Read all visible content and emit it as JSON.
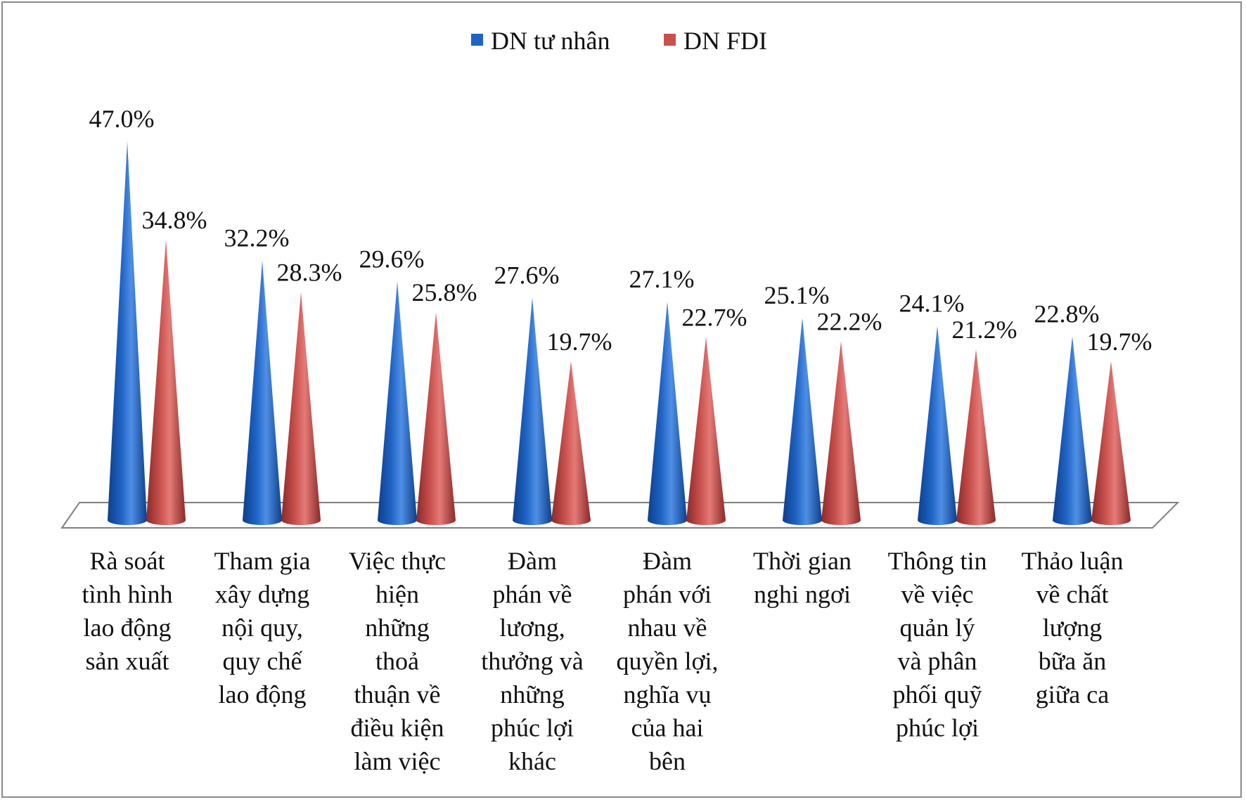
{
  "chart_data": {
    "type": "bar",
    "bar_shape": "cone-3d",
    "categories": [
      [
        "Rà soát",
        "tình hình",
        "lao động",
        "sản xuất"
      ],
      [
        "Tham gia",
        "xây dựng",
        "nội quy,",
        "quy chế",
        "lao động"
      ],
      [
        "Việc thực",
        "hiện",
        "những",
        "thoả",
        "thuận về",
        "điều kiện",
        "làm việc"
      ],
      [
        "Đàm",
        "phán về",
        "lương,",
        "thưởng và",
        "những",
        "phúc lợi",
        "khác"
      ],
      [
        "Đàm",
        "phán với",
        "nhau về",
        "quyền lợi,",
        "nghĩa vụ",
        "của hai",
        "bên"
      ],
      [
        "Thời gian",
        "nghi ngơi"
      ],
      [
        "Thông tin",
        "về việc",
        "quản lý",
        "và phân",
        "phối quỹ",
        "phúc lợi"
      ],
      [
        "Thảo luận",
        "về chất",
        "lượng",
        "bữa ăn",
        "giữa ca"
      ]
    ],
    "series": [
      {
        "name": "DN tư nhân",
        "color": "#1f63c4",
        "values": [
          47.0,
          32.2,
          29.6,
          27.6,
          27.1,
          25.1,
          24.1,
          22.8
        ],
        "labels": [
          "47.0%",
          "32.2%",
          "29.6%",
          "27.6%",
          "27.1%",
          "25.1%",
          "24.1%",
          "22.8%"
        ]
      },
      {
        "name": "DN FDI",
        "color": "#c8504d",
        "values": [
          34.8,
          28.3,
          25.8,
          19.7,
          22.7,
          22.2,
          21.2,
          19.7
        ],
        "labels": [
          "34.8%",
          "28.3%",
          "25.8%",
          "19.7%",
          "22.7%",
          "22.2%",
          "21.2%",
          "19.7%"
        ]
      }
    ],
    "unit": "%",
    "ylim": [
      0,
      50
    ],
    "grid": false,
    "y_axis_visible": false,
    "legend_position": "top-center"
  }
}
